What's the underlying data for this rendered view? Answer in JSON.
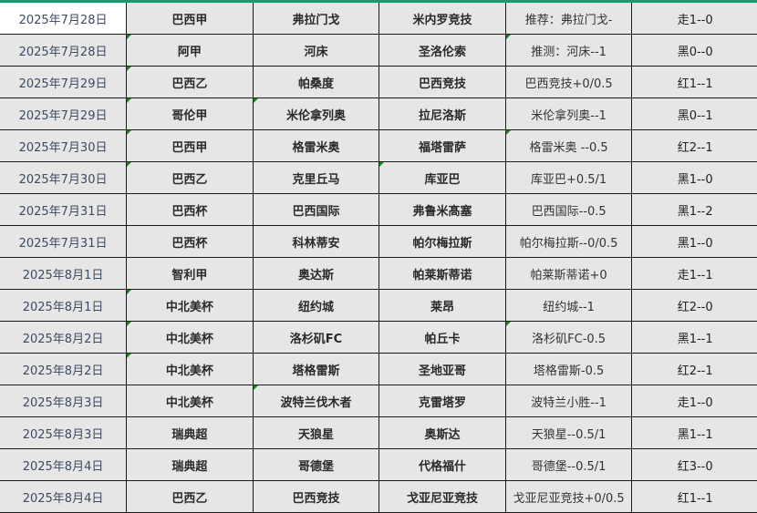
{
  "rows": [
    {
      "date": "2025年7月28日",
      "league": "巴西甲",
      "home": "弗拉门戈",
      "away": "米内罗竞技",
      "tip": "推荐：弗拉门戈-",
      "result": "走1--0"
    },
    {
      "date": "2025年7月28日",
      "league": "阿甲",
      "home": "河床",
      "away": "圣洛伦索",
      "tip": "推测：河床--1",
      "result": "黑0--0"
    },
    {
      "date": "2025年7月29日",
      "league": "巴西乙",
      "home": "帕桑度",
      "away": "巴西竞技",
      "tip": "巴西竞技+0/0.5",
      "result": "红1--1"
    },
    {
      "date": "2025年7月29日",
      "league": "哥伦甲",
      "home": "米伦拿列奥",
      "away": "拉尼洛斯",
      "tip": "米伦拿列奥--1",
      "result": "黑0--1"
    },
    {
      "date": "2025年7月30日",
      "league": "巴西甲",
      "home": "格雷米奥",
      "away": "福塔雷萨",
      "tip": "格雷米奥  --0.5",
      "result": "红2--1"
    },
    {
      "date": "2025年7月30日",
      "league": "巴西乙",
      "home": "克里丘马",
      "away": "库亚巴",
      "tip": "库亚巴+0.5/1",
      "result": "黑1--0"
    },
    {
      "date": "2025年7月31日",
      "league": "巴西杯",
      "home": "巴西国际",
      "away": "弗鲁米髙塞",
      "tip": "巴西国际--0.5",
      "result": "黑1--2"
    },
    {
      "date": "2025年7月31日",
      "league": "巴西杯",
      "home": "科林蒂安",
      "away": "帕尔梅拉斯",
      "tip": "帕尔梅拉斯--0/0.5",
      "result": "黑1--0"
    },
    {
      "date": "2025年8月1日",
      "league": "智利甲",
      "home": "奥达斯",
      "away": "帕莱斯蒂诺",
      "tip": "帕莱斯蒂诺+0",
      "result": "走1--1"
    },
    {
      "date": "2025年8月1日",
      "league": "中北美杯",
      "home": "纽约城",
      "away": "莱昂",
      "tip": "纽约城--1",
      "result": "红2--0"
    },
    {
      "date": "2025年8月2日",
      "league": "中北美杯",
      "home": "洛杉矶FC",
      "away": "帕丘卡",
      "tip": "洛杉矶FC-0.5",
      "result": "黑1--1"
    },
    {
      "date": "2025年8月2日",
      "league": "中北美杯",
      "home": "塔格雷斯",
      "away": "圣地亚哥",
      "tip": "塔格雷斯-0.5",
      "result": "红2--1"
    },
    {
      "date": "2025年8月3日",
      "league": "中北美杯",
      "home": "波特兰伐木者",
      "away": "克雷塔罗",
      "tip": "波特兰小胜--1",
      "result": "走1--0"
    },
    {
      "date": "2025年8月3日",
      "league": "瑞典超",
      "home": "天狼星",
      "away": "奥斯达",
      "tip": "天狼星--0.5/1",
      "result": "黑1--1"
    },
    {
      "date": "2025年8月4日",
      "league": "瑞典超",
      "home": "哥德堡",
      "away": "代格福什",
      "tip": "哥德堡--0.5/1",
      "result": "红3--0"
    },
    {
      "date": "2025年8月4日",
      "league": "巴西乙",
      "home": "巴西竞技",
      "away": "戈亚尼亚竞技",
      "tip": "戈亚尼亚竞技+0/0.5",
      "result": "红1--1"
    }
  ],
  "colors": {
    "header_border": "#1a9a6a",
    "cell_bg": "#e6e6e6",
    "comment_marker": "#138a13"
  }
}
